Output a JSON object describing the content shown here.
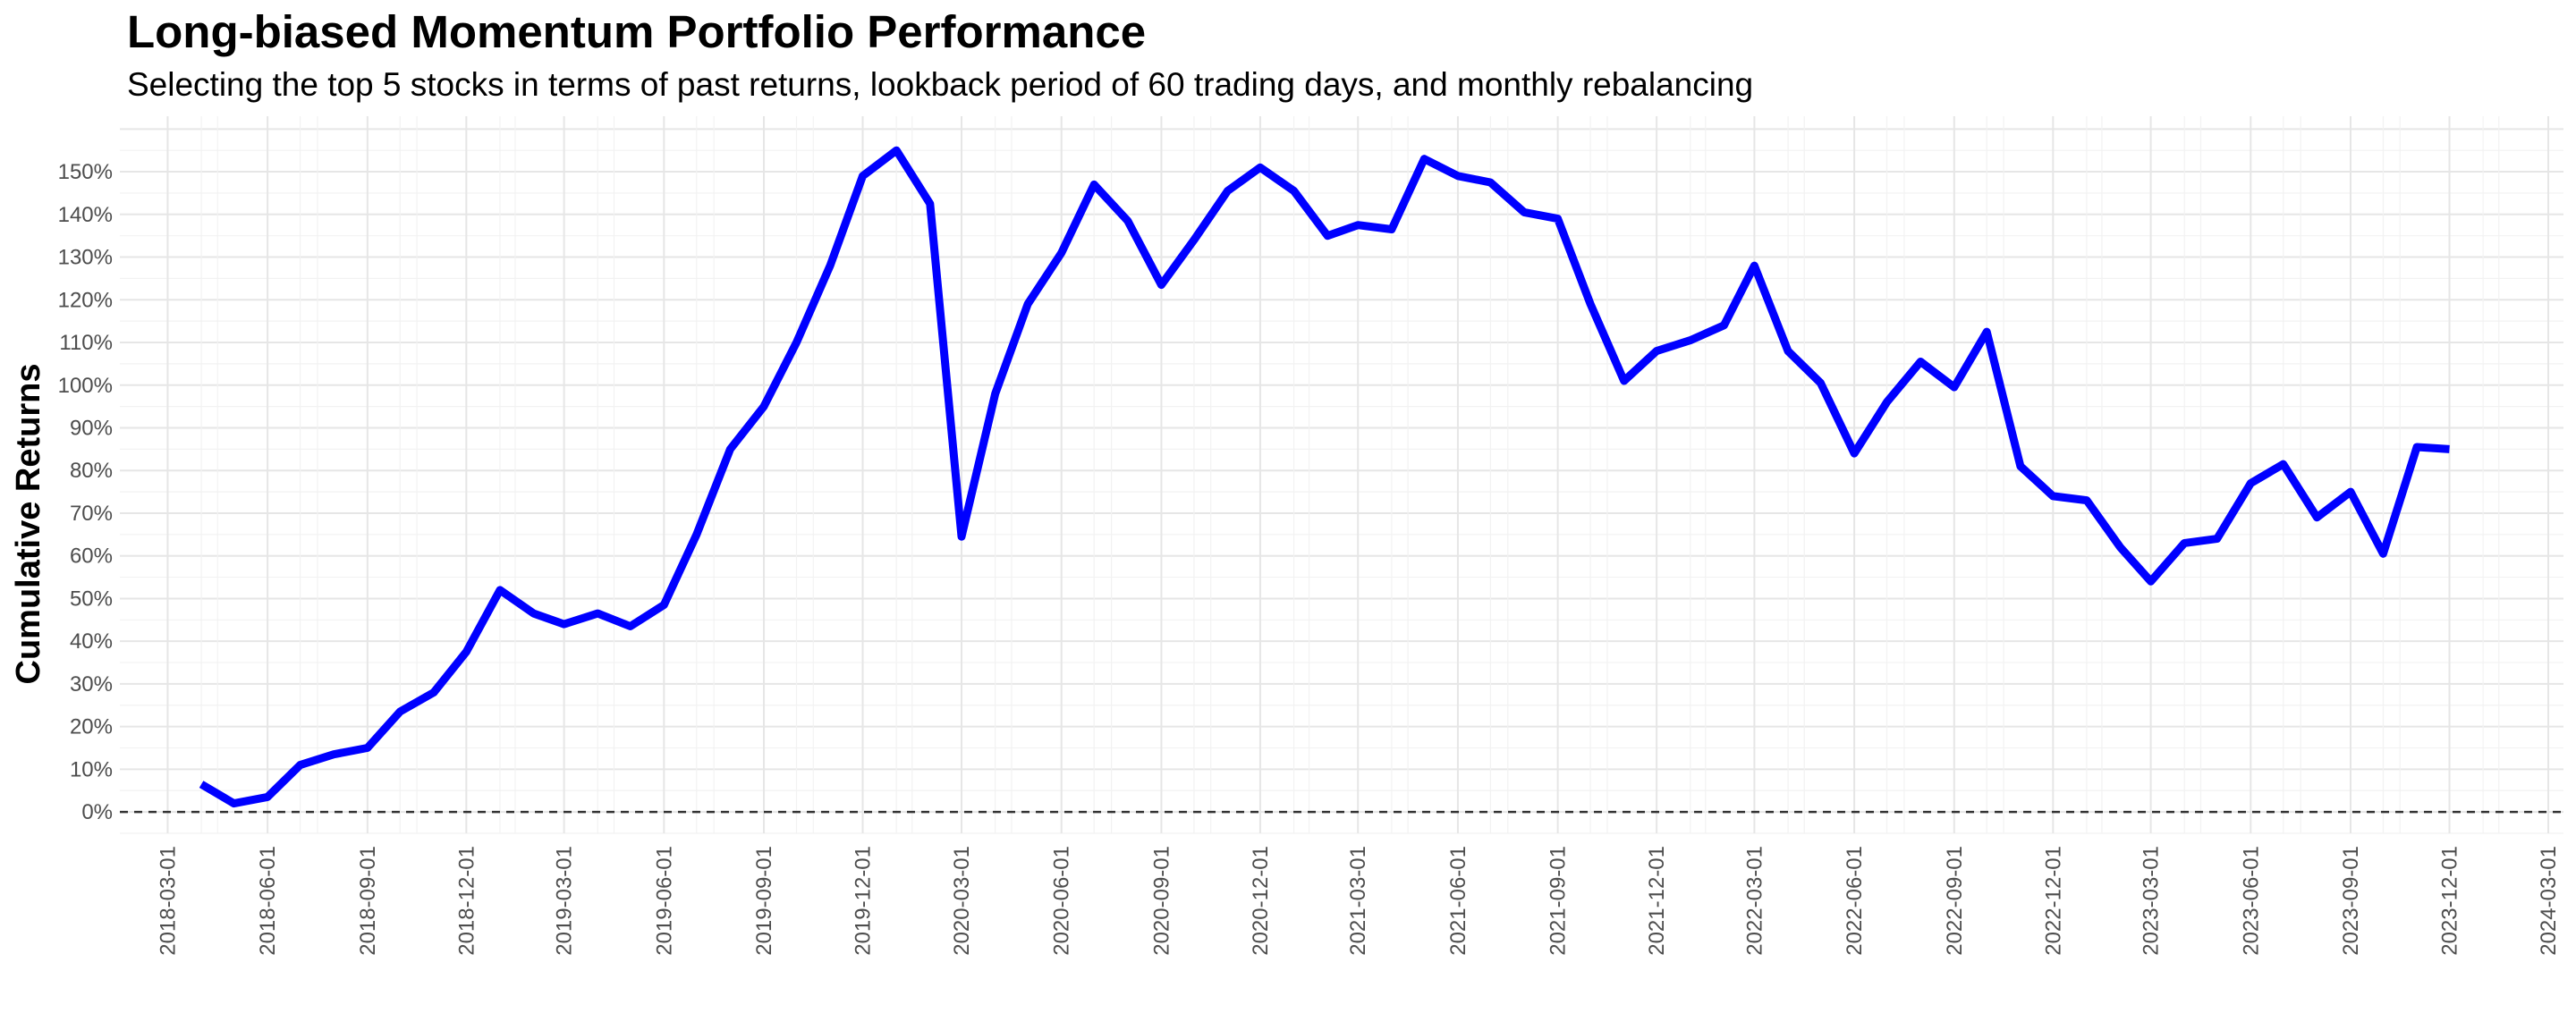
{
  "title": "Long-biased Momentum Portfolio Performance",
  "subtitle": "Selecting the top 5 stocks in terms of past returns, lookback period of 60 trading days, and monthly rebalancing",
  "colors": {
    "line": "#0000ff",
    "grid_major": "#e6e6e6",
    "grid_minor": "#f2f2f2",
    "zero_line": "#333333",
    "tick_text": "#4d4d4d"
  },
  "chart_data": {
    "type": "line",
    "title": "Long-biased Momentum Portfolio Performance",
    "subtitle": "Selecting the top 5 stocks in terms of past returns, lookback period of 60 trading days, and monthly rebalancing",
    "xlabel": "",
    "ylabel": "Cumulative Returns",
    "xlim": [
      "2018-02-01",
      "2024-03-01"
    ],
    "ylim": [
      -5,
      163
    ],
    "y_ticks": [
      0,
      10,
      20,
      30,
      40,
      50,
      60,
      70,
      80,
      90,
      100,
      110,
      120,
      130,
      140,
      150
    ],
    "y_tick_labels": [
      "0%",
      "10%",
      "20%",
      "30%",
      "40%",
      "50%",
      "60%",
      "70%",
      "80%",
      "90%",
      "100%",
      "110%",
      "120%",
      "130%",
      "140%",
      "150%"
    ],
    "x_ticks": [
      "2018-03-01",
      "2018-06-01",
      "2018-09-01",
      "2018-12-01",
      "2019-03-01",
      "2019-06-01",
      "2019-09-01",
      "2019-12-01",
      "2020-03-01",
      "2020-06-01",
      "2020-09-01",
      "2020-12-01",
      "2021-03-01",
      "2021-06-01",
      "2021-09-01",
      "2021-12-01",
      "2022-03-01",
      "2022-06-01",
      "2022-09-01",
      "2022-12-01",
      "2023-03-01",
      "2023-06-01",
      "2023-09-01",
      "2023-12-01",
      "2024-03-01"
    ],
    "reference_line": {
      "y": 0,
      "style": "dashed"
    },
    "grid": true,
    "legend": "none",
    "series": [
      {
        "x": [
          "2018-04-01",
          "2018-05-01",
          "2018-06-01",
          "2018-07-01",
          "2018-08-01",
          "2018-09-01",
          "2018-10-01",
          "2018-11-01",
          "2018-12-01",
          "2019-01-01",
          "2019-02-01",
          "2019-03-01",
          "2019-04-01",
          "2019-05-01",
          "2019-06-01",
          "2019-07-01",
          "2019-08-01",
          "2019-09-01",
          "2019-10-01",
          "2019-11-01",
          "2019-12-01",
          "2020-01-01",
          "2020-02-01",
          "2020-03-01",
          "2020-04-01",
          "2020-05-01",
          "2020-06-01",
          "2020-07-01",
          "2020-08-01",
          "2020-09-01",
          "2020-10-01",
          "2020-11-01",
          "2020-12-01",
          "2021-01-01",
          "2021-02-01",
          "2021-03-01",
          "2021-04-01",
          "2021-05-01",
          "2021-06-01",
          "2021-07-01",
          "2021-08-01",
          "2021-09-01",
          "2021-10-01",
          "2021-11-01",
          "2021-12-01",
          "2022-01-01",
          "2022-02-01",
          "2022-03-01",
          "2022-04-01",
          "2022-05-01",
          "2022-06-01",
          "2022-07-01",
          "2022-08-01",
          "2022-09-01",
          "2022-10-01",
          "2022-11-01",
          "2022-12-01",
          "2023-01-01",
          "2023-02-01",
          "2023-03-01",
          "2023-04-01",
          "2023-05-01",
          "2023-06-01",
          "2023-07-01",
          "2023-08-01",
          "2023-09-01",
          "2023-10-01",
          "2023-11-01",
          "2023-12-01"
        ],
        "y": [
          6.5,
          2,
          3.5,
          11,
          13.5,
          15,
          23.5,
          28,
          37.5,
          52,
          46.5,
          44,
          46.5,
          43.5,
          48.5,
          65,
          85,
          95,
          110,
          128,
          149,
          155,
          142.5,
          64.5,
          98,
          119,
          131,
          147,
          138.5,
          123.5,
          134,
          145.5,
          151,
          145.5,
          135,
          137.5,
          136.5,
          153,
          149,
          147.5,
          140.5,
          139,
          119,
          101,
          108,
          110.5,
          114,
          128,
          108,
          100.5,
          84,
          96,
          105.5,
          99.5,
          112.5,
          81,
          74,
          73,
          62,
          54,
          63,
          64,
          77,
          81.5,
          69,
          75,
          60.5,
          85.5,
          85
        ]
      }
    ]
  }
}
